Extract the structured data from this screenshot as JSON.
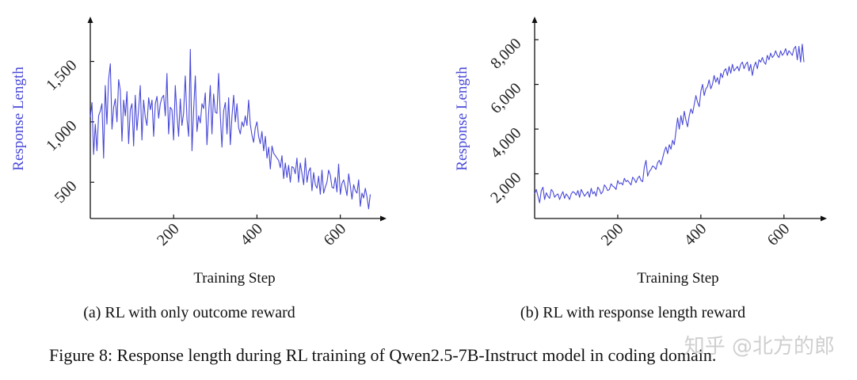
{
  "figure_caption": "Figure 8: Response length during RL training of Qwen2.5-7B-Instruct model in coding domain.",
  "watermark": "知乎 @北方的郎",
  "colors": {
    "series": "#4848d8",
    "axis": "#111111"
  },
  "chart_data": [
    {
      "type": "line",
      "caption": "(a) RL with only outcome reward",
      "xlabel": "Training Step",
      "ylabel": "Response Length",
      "xlim": [
        0,
        690
      ],
      "ylim": [
        200,
        1720
      ],
      "x_ticks": [
        200,
        400,
        600
      ],
      "y_ticks": [
        500,
        1000,
        1500
      ],
      "x_tick_labels": [
        "200",
        "400",
        "600"
      ],
      "y_tick_labels": [
        "500",
        "1,000",
        "1,500"
      ],
      "series": [
        {
          "name": "Response Length",
          "x_start": 0,
          "x_step": 4,
          "values": [
            1040,
            1160,
            730,
            980,
            760,
            1050,
            1090,
            1150,
            700,
            1300,
            980,
            1350,
            1480,
            940,
            1120,
            1190,
            1000,
            1350,
            1260,
            840,
            1180,
            1050,
            1250,
            820,
            1100,
            1150,
            800,
            1220,
            930,
            1100,
            1300,
            850,
            1180,
            1040,
            970,
            1200,
            1100,
            1180,
            880,
            1150,
            1210,
            1030,
            1150,
            1200,
            1220,
            1050,
            1400,
            900,
            1120,
            1100,
            850,
            1300,
            1060,
            880,
            1190,
            970,
            1070,
            1380,
            1020,
            880,
            1600,
            760,
            1100,
            1380,
            920,
            1050,
            990,
            1150,
            1110,
            1240,
            810,
            1070,
            1300,
            900,
            1230,
            1080,
            1070,
            1400,
            1060,
            790,
            1090,
            1160,
            900,
            1200,
            810,
            1050,
            1220,
            1000,
            1150,
            950,
            900,
            1000,
            960,
            1050,
            970,
            1180,
            980,
            890,
            830,
            950,
            1000,
            880,
            820,
            920,
            760,
            880,
            700,
            790,
            610,
            800,
            740,
            720,
            700,
            680,
            620,
            720,
            530,
            660,
            540,
            640,
            500,
            630,
            620,
            570,
            700,
            500,
            660,
            570,
            480,
            700,
            500,
            590,
            620,
            430,
            580,
            480,
            450,
            550,
            400,
            600,
            410,
            460,
            500,
            600,
            560,
            460,
            450,
            540,
            420,
            650,
            400,
            490,
            520,
            460,
            390,
            570,
            470,
            360,
            480,
            430,
            410,
            520,
            300,
            410,
            370,
            450,
            380,
            280,
            400
          ]
        }
      ]
    },
    {
      "type": "line",
      "caption": "(b) RL with response length reward",
      "xlabel": "Training Step",
      "ylabel": "Response Length",
      "xlim": [
        0,
        690
      ],
      "ylim": [
        0,
        8500
      ],
      "x_ticks": [
        200,
        400,
        600
      ],
      "y_ticks": [
        2000,
        4000,
        6000,
        8000
      ],
      "x_tick_labels": [
        "200",
        "400",
        "600"
      ],
      "y_tick_labels": [
        "2,000",
        "4,000",
        "6,000",
        "8,000"
      ],
      "series": [
        {
          "name": "Response Length",
          "x_start": 0,
          "x_step": 4,
          "values": [
            1100,
            1300,
            1000,
            700,
            1250,
            1400,
            850,
            1150,
            1000,
            900,
            1300,
            1200,
            950,
            1050,
            1100,
            850,
            1050,
            1200,
            900,
            1100,
            1000,
            850,
            1100,
            1200,
            1150,
            1050,
            1250,
            950,
            1300,
            1150,
            1000,
            1100,
            1200,
            950,
            1350,
            1100,
            1200,
            1000,
            1400,
            1300,
            1100,
            1200,
            1500,
            1400,
            1250,
            1300,
            1550,
            1450,
            1400,
            1300,
            1700,
            1550,
            1600,
            1500,
            1800,
            1650,
            1700,
            1600,
            1500,
            1850,
            1750,
            1600,
            1800,
            1900,
            1700,
            1650,
            2300,
            2600,
            1900,
            2100,
            2200,
            2350,
            2300,
            2200,
            2500,
            2600,
            2400,
            2700,
            3000,
            3200,
            2900,
            3300,
            3100,
            3500,
            3300,
            3900,
            4500,
            4000,
            4600,
            4200,
            4800,
            4400,
            4100,
            4600,
            4900,
            4700,
            5100,
            5500,
            5200,
            5000,
            5700,
            6000,
            5500,
            5800,
            5900,
            6200,
            5800,
            6000,
            6400,
            6100,
            6300,
            6000,
            6500,
            6300,
            6600,
            6700,
            6400,
            6800,
            6500,
            6900,
            6600,
            6700,
            6800,
            6600,
            6900,
            7000,
            6700,
            6900,
            7000,
            6600,
            6900,
            6400,
            6800,
            7000,
            6700,
            7100,
            7000,
            7200,
            7000,
            6900,
            7300,
            7100,
            7400,
            7200,
            7300,
            7500,
            7300,
            7200,
            7500,
            7300,
            7400,
            7600,
            7300,
            7500,
            7400,
            7300,
            7600,
            7700,
            7100,
            7700,
            7000,
            7800,
            7000
          ]
        }
      ]
    }
  ]
}
